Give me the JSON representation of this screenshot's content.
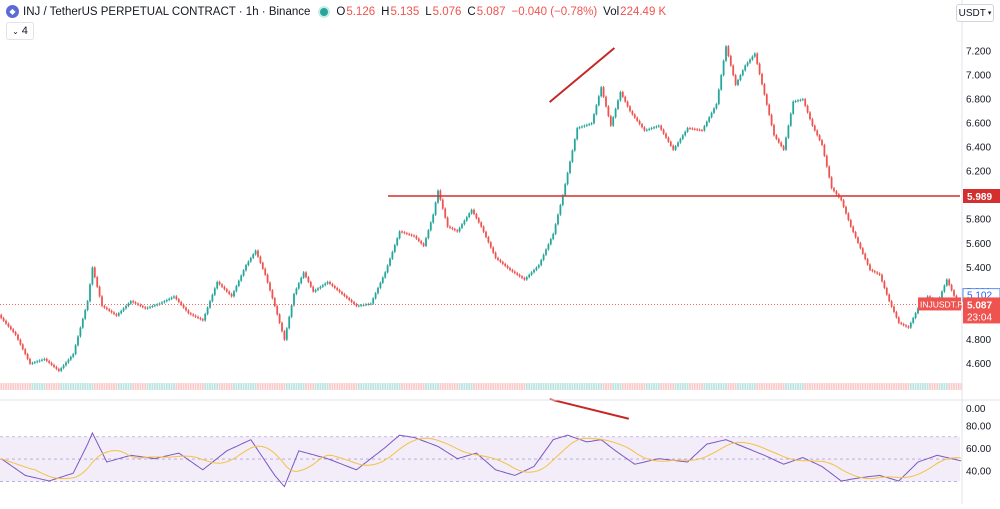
{
  "header": {
    "symbol_icon": "injective-logo-icon",
    "title": "INJ / TetherUS PERPETUAL CONTRACT · 1h · Binance",
    "o_label": "O",
    "o_value": "5.126",
    "h_label": "H",
    "h_value": "5.135",
    "l_label": "L",
    "l_value": "5.076",
    "c_label": "C",
    "c_value": "5.087",
    "change": "−0.040 (−0.78%)",
    "vol_label": "Vol",
    "vol_value": "224.49 K",
    "collapse_label": "4",
    "currency": "USDT"
  },
  "colors": {
    "up": "#26a69a",
    "down": "#ef5350",
    "rsi": "#7e57c2",
    "rsi_ma": "#f5c242",
    "level": "#d32f2f",
    "annot": "#c62828",
    "rsi_band": "#ede7f6"
  },
  "chart_data": [
    {
      "type": "candlestick",
      "timeframe": "1h",
      "yticks": [
        "7.200",
        "7.000",
        "6.800",
        "6.600",
        "6.400",
        "6.200",
        "6.000",
        "5.800",
        "5.600",
        "5.400",
        "5.200",
        "5.000",
        "4.800",
        "4.600"
      ],
      "ylim": [
        4.5,
        7.32
      ],
      "horizontal_line": {
        "value": 5.989,
        "label": "5.989"
      },
      "price_labels": [
        {
          "value": 5.102,
          "text": "5.102"
        },
        {
          "value": 5.087,
          "text": "5.087",
          "name": "INJUSDT.P",
          "countdown": "23:04"
        }
      ],
      "trendline": {
        "from": [
          2.29,
          6.77
        ],
        "to": [
          2.56,
          7.22
        ]
      },
      "path": [
        [
          0,
          5.0
        ],
        [
          6,
          4.86
        ],
        [
          12,
          4.62
        ],
        [
          18,
          4.66
        ],
        [
          24,
          4.56
        ],
        [
          30,
          4.7
        ],
        [
          36,
          5.14
        ],
        [
          38,
          5.42
        ],
        [
          42,
          5.1
        ],
        [
          48,
          5.02
        ],
        [
          54,
          5.14
        ],
        [
          60,
          5.08
        ],
        [
          66,
          5.12
        ],
        [
          72,
          5.18
        ],
        [
          78,
          5.04
        ],
        [
          84,
          4.98
        ],
        [
          90,
          5.3
        ],
        [
          96,
          5.18
        ],
        [
          102,
          5.44
        ],
        [
          106,
          5.56
        ],
        [
          110,
          5.36
        ],
        [
          114,
          5.1
        ],
        [
          118,
          4.82
        ],
        [
          122,
          5.2
        ],
        [
          126,
          5.38
        ],
        [
          130,
          5.22
        ],
        [
          136,
          5.3
        ],
        [
          142,
          5.2
        ],
        [
          148,
          5.1
        ],
        [
          154,
          5.12
        ],
        [
          160,
          5.38
        ],
        [
          166,
          5.72
        ],
        [
          172,
          5.68
        ],
        [
          176,
          5.6
        ],
        [
          180,
          5.86
        ],
        [
          182,
          6.06
        ],
        [
          186,
          5.76
        ],
        [
          190,
          5.72
        ],
        [
          196,
          5.9
        ],
        [
          200,
          5.76
        ],
        [
          206,
          5.5
        ],
        [
          212,
          5.4
        ],
        [
          218,
          5.32
        ],
        [
          224,
          5.44
        ],
        [
          230,
          5.7
        ],
        [
          234,
          6.02
        ],
        [
          240,
          6.58
        ],
        [
          246,
          6.62
        ],
        [
          250,
          6.92
        ],
        [
          254,
          6.6
        ],
        [
          258,
          6.88
        ],
        [
          262,
          6.72
        ],
        [
          268,
          6.56
        ],
        [
          274,
          6.6
        ],
        [
          280,
          6.4
        ],
        [
          286,
          6.58
        ],
        [
          292,
          6.56
        ],
        [
          298,
          6.78
        ],
        [
          302,
          7.26
        ],
        [
          306,
          6.94
        ],
        [
          310,
          7.1
        ],
        [
          314,
          7.2
        ],
        [
          318,
          6.86
        ],
        [
          322,
          6.52
        ],
        [
          326,
          6.4
        ],
        [
          330,
          6.8
        ],
        [
          334,
          6.82
        ],
        [
          338,
          6.6
        ],
        [
          342,
          6.44
        ],
        [
          346,
          6.08
        ],
        [
          350,
          5.98
        ],
        [
          354,
          5.76
        ],
        [
          358,
          5.58
        ],
        [
          362,
          5.4
        ],
        [
          366,
          5.36
        ],
        [
          370,
          5.14
        ],
        [
          374,
          4.96
        ],
        [
          378,
          4.92
        ],
        [
          382,
          5.08
        ],
        [
          386,
          5.18
        ],
        [
          390,
          5.12
        ],
        [
          394,
          5.32
        ],
        [
          398,
          5.14
        ],
        [
          400,
          5.09
        ]
      ]
    },
    {
      "type": "bar",
      "name": "Volume",
      "yticks": [
        "0.00"
      ],
      "spike_count": 11
    },
    {
      "type": "line",
      "name": "RSI",
      "yticks": [
        "80.00",
        "60.00",
        "40.00"
      ],
      "ylim": [
        25,
        85
      ],
      "band": [
        30,
        70
      ],
      "midline": 50,
      "trendline": {
        "from": [
          2.29,
          75
        ],
        "to": [
          2.62,
          70
        ]
      },
      "path": [
        [
          0,
          55
        ],
        [
          10,
          40
        ],
        [
          20,
          35
        ],
        [
          30,
          42
        ],
        [
          36,
          68
        ],
        [
          38,
          78
        ],
        [
          44,
          52
        ],
        [
          54,
          58
        ],
        [
          64,
          55
        ],
        [
          74,
          60
        ],
        [
          84,
          45
        ],
        [
          94,
          62
        ],
        [
          104,
          72
        ],
        [
          114,
          40
        ],
        [
          118,
          30
        ],
        [
          124,
          62
        ],
        [
          136,
          55
        ],
        [
          148,
          45
        ],
        [
          160,
          65
        ],
        [
          166,
          76
        ],
        [
          172,
          74
        ],
        [
          182,
          66
        ],
        [
          190,
          55
        ],
        [
          198,
          60
        ],
        [
          206,
          45
        ],
        [
          214,
          40
        ],
        [
          222,
          48
        ],
        [
          230,
          72
        ],
        [
          236,
          76
        ],
        [
          244,
          70
        ],
        [
          250,
          72
        ],
        [
          256,
          62
        ],
        [
          264,
          50
        ],
        [
          274,
          55
        ],
        [
          286,
          52
        ],
        [
          294,
          68
        ],
        [
          302,
          72
        ],
        [
          310,
          65
        ],
        [
          318,
          58
        ],
        [
          326,
          50
        ],
        [
          334,
          56
        ],
        [
          342,
          48
        ],
        [
          350,
          35
        ],
        [
          358,
          38
        ],
        [
          366,
          40
        ],
        [
          374,
          35
        ],
        [
          382,
          52
        ],
        [
          390,
          58
        ],
        [
          396,
          55
        ],
        [
          400,
          53
        ]
      ]
    }
  ]
}
